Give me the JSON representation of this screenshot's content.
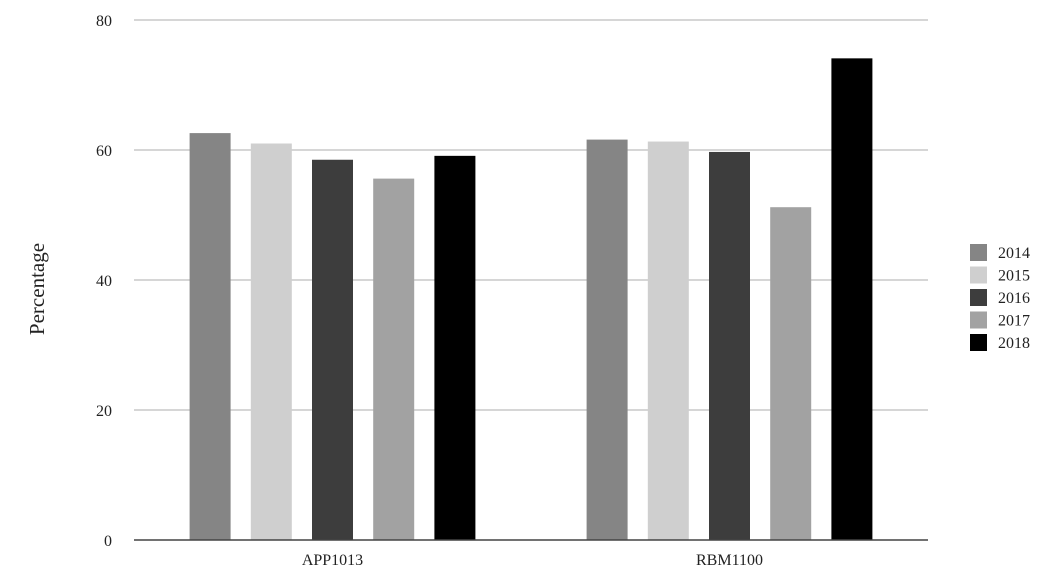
{
  "chart_data": {
    "type": "bar",
    "categories": [
      "APP1013",
      "RBM1100"
    ],
    "series": [
      {
        "name": "2014",
        "values": [
          62.6,
          61.6
        ],
        "color": "#858585"
      },
      {
        "name": "2015",
        "values": [
          61.0,
          61.3
        ],
        "color": "#cfcfcf"
      },
      {
        "name": "2016",
        "values": [
          58.5,
          59.7
        ],
        "color": "#3d3d3d"
      },
      {
        "name": "2017",
        "values": [
          55.6,
          51.2
        ],
        "color": "#a2a2a2"
      },
      {
        "name": "2018",
        "values": [
          59.1,
          74.1
        ],
        "color": "#000000"
      }
    ],
    "title": "",
    "xlabel": "",
    "ylabel": "Percentage",
    "ylim": [
      0,
      80
    ],
    "yticks": [
      0,
      20,
      40,
      60,
      80
    ],
    "grid": true,
    "legend_position": "right"
  }
}
